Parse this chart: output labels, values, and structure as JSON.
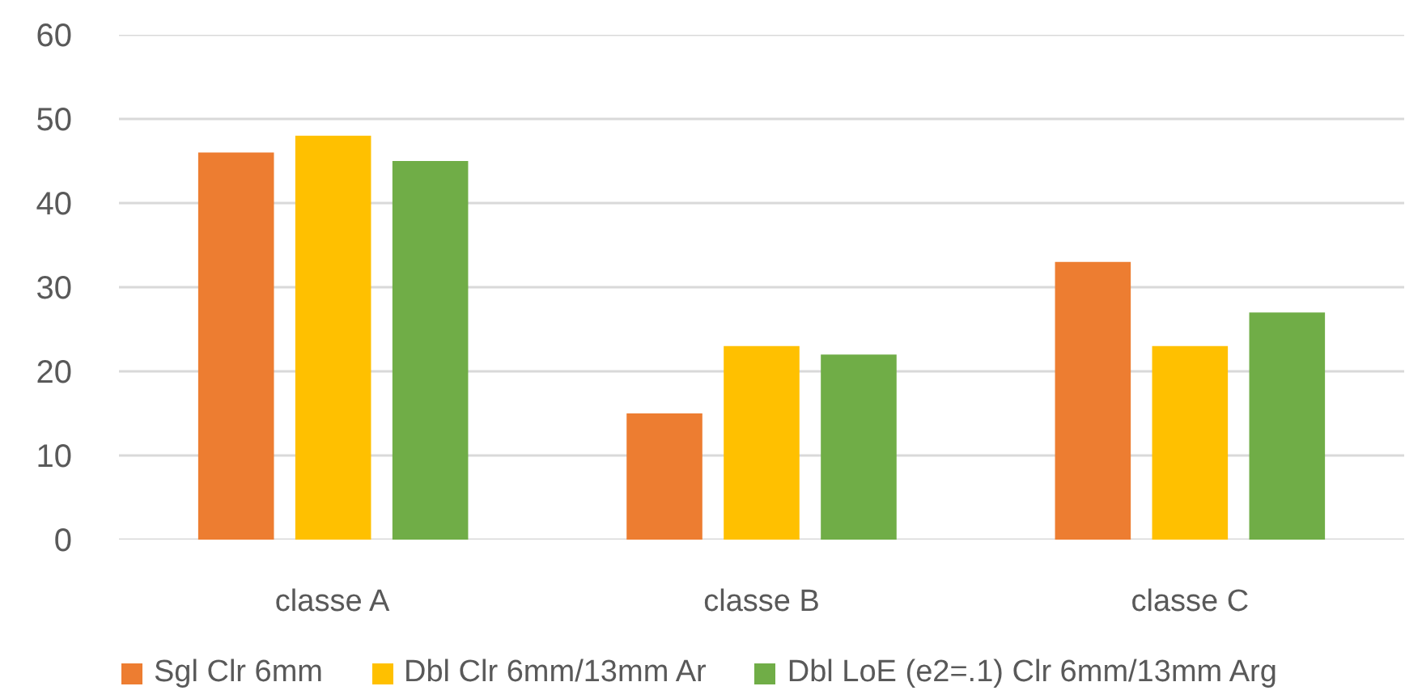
{
  "chart_data": {
    "type": "bar",
    "categories": [
      "classe A",
      "classe B",
      "classe C"
    ],
    "series": [
      {
        "name": "Sgl Clr 6mm",
        "color": "#ed7d31",
        "values": [
          46,
          15,
          33
        ]
      },
      {
        "name": "Dbl Clr 6mm/13mm Ar",
        "color": "#ffc000",
        "values": [
          48,
          23,
          23
        ]
      },
      {
        "name": "Dbl LoE (e2=.1) Clr 6mm/13mm Arg",
        "color": "#70ad47",
        "values": [
          45,
          22,
          27
        ]
      }
    ],
    "ylim": [
      0,
      60
    ],
    "yticks": [
      0,
      10,
      20,
      30,
      40,
      50,
      60
    ],
    "grid": "y",
    "legend": "bottom"
  }
}
